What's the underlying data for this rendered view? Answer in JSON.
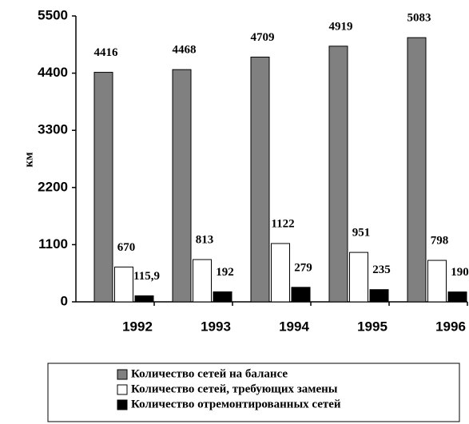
{
  "chart_data": {
    "type": "bar",
    "y_label": "км",
    "categories": [
      "1992",
      "1993",
      "1994",
      "1995",
      "1996"
    ],
    "series": [
      {
        "name": "Количество сетей на балансе",
        "color": "#808080",
        "values": [
          4416,
          4468,
          4709,
          4919,
          5083
        ]
      },
      {
        "name": "Количество сетей, требующих замены",
        "color": "#ffffff",
        "values": [
          670,
          813,
          1122,
          951,
          798
        ]
      },
      {
        "name": "Количество отремонтированных сетей",
        "color": "#000000",
        "values": [
          115.9,
          192,
          279,
          235,
          190
        ],
        "value_labels": [
          "115,9",
          "192",
          "279",
          "235",
          "190"
        ]
      }
    ],
    "ylim": [
      0,
      5500
    ],
    "yticks": [
      0,
      1100,
      2200,
      3300,
      4400,
      5500
    ]
  }
}
